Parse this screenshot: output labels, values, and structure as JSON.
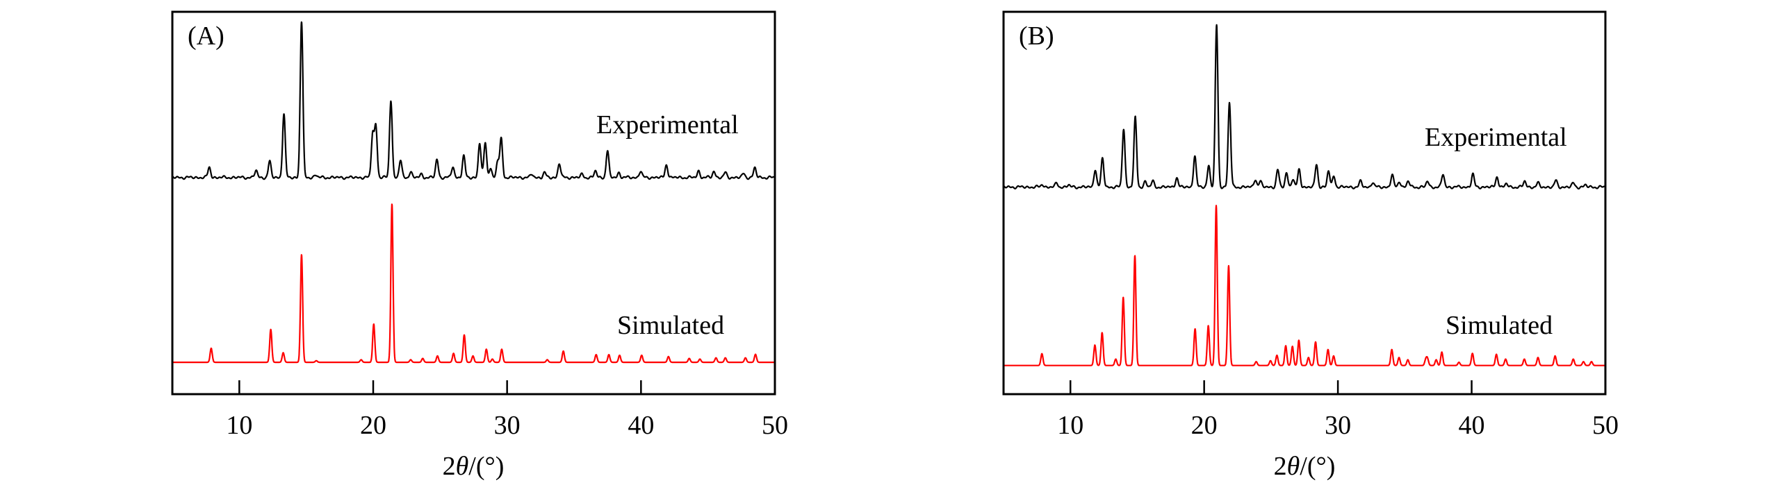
{
  "chart_data": [
    {
      "type": "line",
      "panel_label": "(A)",
      "xlabel_prefix": "2",
      "xlabel_var": "θ",
      "xlabel_suffix": "/(°)",
      "xlim": [
        5,
        50
      ],
      "ylim": [
        0,
        120
      ],
      "xticks": [
        10,
        20,
        30,
        40,
        50
      ],
      "ylabel": "",
      "grid": false,
      "series": [
        {
          "name": "Experimental",
          "color": "#000000",
          "offset": 68,
          "width": 0.1,
          "peaks": [
            [
              7.76,
              3.2
            ],
            [
              11.25,
              2.2
            ],
            [
              12.27,
              5.1
            ],
            [
              13.33,
              20
            ],
            [
              14.65,
              49
            ],
            [
              15.7,
              0.8
            ],
            [
              19.96,
              13.8
            ],
            [
              20.2,
              16
            ],
            [
              21.32,
              24.4
            ],
            [
              22.04,
              5.4
            ],
            [
              22.8,
              1.8
            ],
            [
              23.6,
              1
            ],
            [
              24.76,
              5.7
            ],
            [
              25.95,
              3.4
            ],
            [
              26.76,
              6.7
            ],
            [
              27.95,
              10.8
            ],
            [
              28.37,
              11
            ],
            [
              28.75,
              3
            ],
            [
              29.3,
              5
            ],
            [
              29.56,
              12
            ],
            [
              31.85,
              1
            ],
            [
              32.8,
              1.5
            ],
            [
              33.9,
              4.4
            ],
            [
              35.6,
              1
            ],
            [
              36.6,
              2
            ],
            [
              37.5,
              8.4
            ],
            [
              38.35,
              1.5
            ],
            [
              39.97,
              2
            ],
            [
              41.9,
              4.1
            ],
            [
              44.3,
              2
            ],
            [
              45.45,
              2
            ],
            [
              46.3,
              1.5
            ],
            [
              47.66,
              1.2
            ],
            [
              48.5,
              3
            ]
          ]
        },
        {
          "name": "Simulated",
          "color": "#ff0000",
          "offset": 10,
          "width": 0.08,
          "peaks": [
            [
              7.9,
              4.4
            ],
            [
              12.35,
              10.3
            ],
            [
              13.28,
              3
            ],
            [
              14.65,
              33.8
            ],
            [
              15.75,
              0.5
            ],
            [
              19.1,
              0.8
            ],
            [
              20.04,
              12
            ],
            [
              21.4,
              49.7
            ],
            [
              22.8,
              0.8
            ],
            [
              23.7,
              1.2
            ],
            [
              24.8,
              2
            ],
            [
              26.0,
              2.8
            ],
            [
              26.8,
              8.6
            ],
            [
              27.45,
              2
            ],
            [
              28.45,
              4.1
            ],
            [
              28.9,
              1
            ],
            [
              29.6,
              4.1
            ],
            [
              33.0,
              0.8
            ],
            [
              34.2,
              3.5
            ],
            [
              36.65,
              2.4
            ],
            [
              37.6,
              2.4
            ],
            [
              38.4,
              2.2
            ],
            [
              40.05,
              2.2
            ],
            [
              42.05,
              1.8
            ],
            [
              43.6,
              1.2
            ],
            [
              44.4,
              1
            ],
            [
              45.6,
              1.4
            ],
            [
              46.3,
              1.4
            ],
            [
              47.8,
              1.4
            ],
            [
              48.55,
              2.5
            ]
          ]
        }
      ]
    },
    {
      "type": "line",
      "panel_label": "(B)",
      "xlabel_prefix": "2",
      "xlabel_var": "θ",
      "xlabel_suffix": "/(°)",
      "xlim": [
        5,
        50
      ],
      "ylim": [
        0,
        120
      ],
      "xticks": [
        10,
        20,
        30,
        40,
        50
      ],
      "ylabel": "",
      "grid": false,
      "series": [
        {
          "name": "Experimental",
          "color": "#000000",
          "offset": 65,
          "width": 0.1,
          "peaks": [
            [
              7.9,
              0.8
            ],
            [
              8.97,
              1.2
            ],
            [
              9.86,
              0.6
            ],
            [
              11.86,
              5.7
            ],
            [
              12.4,
              8.9
            ],
            [
              13.98,
              18.4
            ],
            [
              14.85,
              21.7
            ],
            [
              15.6,
              1.8
            ],
            [
              16.16,
              1.8
            ],
            [
              17.95,
              3
            ],
            [
              19.3,
              9.9
            ],
            [
              20.34,
              6.9
            ],
            [
              20.93,
              50.7
            ],
            [
              21.89,
              26.4
            ],
            [
              23.83,
              2.5
            ],
            [
              24.2,
              1.8
            ],
            [
              25.5,
              5.4
            ],
            [
              26.16,
              4.5
            ],
            [
              26.63,
              2.5
            ],
            [
              27.1,
              5.5
            ],
            [
              28.4,
              7.1
            ],
            [
              29.3,
              5
            ],
            [
              29.7,
              3.5
            ],
            [
              31.7,
              1.8
            ],
            [
              32.6,
              1.5
            ],
            [
              34.06,
              3.8
            ],
            [
              34.6,
              1.8
            ],
            [
              35.26,
              1.8
            ],
            [
              36.7,
              1.8
            ],
            [
              37.86,
              4
            ],
            [
              40.09,
              4
            ],
            [
              41.9,
              3.3
            ],
            [
              42.6,
              1
            ],
            [
              43.97,
              1.8
            ],
            [
              44.96,
              1.2
            ],
            [
              46.3,
              2
            ],
            [
              47.6,
              1.2
            ],
            [
              48.5,
              0.6
            ]
          ]
        },
        {
          "name": "Simulated",
          "color": "#ff0000",
          "offset": 9,
          "width": 0.08,
          "peaks": [
            [
              7.87,
              3.7
            ],
            [
              11.83,
              6.4
            ],
            [
              12.37,
              10.3
            ],
            [
              13.39,
              2
            ],
            [
              13.95,
              21.4
            ],
            [
              14.82,
              34.5
            ],
            [
              19.32,
              11.5
            ],
            [
              20.31,
              12.5
            ],
            [
              20.9,
              50.2
            ],
            [
              21.83,
              31.3
            ],
            [
              23.89,
              1.2
            ],
            [
              24.96,
              1.5
            ],
            [
              25.44,
              3.2
            ],
            [
              26.1,
              6.2
            ],
            [
              26.6,
              6
            ],
            [
              27.08,
              7.9
            ],
            [
              27.8,
              2.5
            ],
            [
              28.33,
              7.4
            ],
            [
              29.26,
              5
            ],
            [
              29.68,
              3
            ],
            [
              34.03,
              5
            ],
            [
              34.57,
              2.5
            ],
            [
              35.23,
              1.8
            ],
            [
              36.57,
              1.8
            ],
            [
              36.7,
              2
            ],
            [
              37.35,
              1.8
            ],
            [
              37.77,
              4.2
            ],
            [
              39.05,
              1
            ],
            [
              40.06,
              3.8
            ],
            [
              41.85,
              3.5
            ],
            [
              42.54,
              2
            ],
            [
              43.94,
              2
            ],
            [
              44.96,
              2.5
            ],
            [
              46.24,
              3
            ],
            [
              47.6,
              2
            ],
            [
              48.36,
              1.2
            ],
            [
              48.96,
              1.2
            ]
          ]
        }
      ]
    }
  ]
}
